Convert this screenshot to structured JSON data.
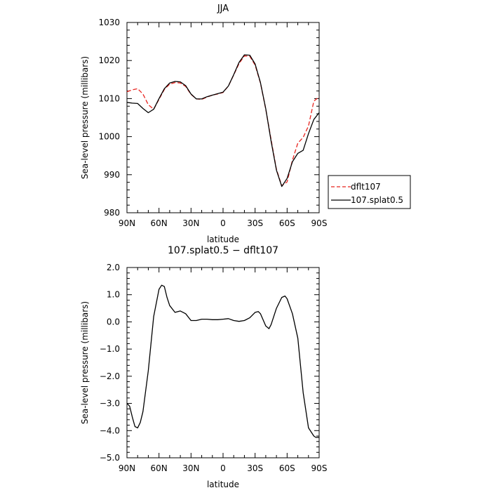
{
  "chart_data": [
    {
      "type": "line",
      "title": "JJA",
      "xlabel": "latitude",
      "ylabel": "Sea-level pressure (millibars)",
      "xlim": [
        90,
        -90
      ],
      "ylim": [
        980,
        1030
      ],
      "x_ticks": [
        90,
        60,
        30,
        0,
        -30,
        -60,
        -90
      ],
      "x_tick_labels": [
        "90N",
        "60N",
        "30N",
        "0",
        "30S",
        "60S",
        "90S"
      ],
      "y_ticks": [
        980,
        990,
        1000,
        1010,
        1020,
        1030
      ],
      "y_tick_labels": [
        "980",
        "990",
        "1000",
        "1010",
        "1020",
        "1030"
      ],
      "legend_position": "right",
      "series": [
        {
          "name": "dflt107",
          "color": "#e8241f",
          "dash": "dashed",
          "x": [
            90,
            85,
            80,
            75,
            70,
            65,
            60,
            55,
            50,
            45,
            40,
            35,
            30,
            25,
            20,
            15,
            10,
            5,
            0,
            -5,
            -10,
            -15,
            -20,
            -25,
            -30,
            -35,
            -40,
            -45,
            -50,
            -55,
            -60,
            -65,
            -70,
            -75,
            -80,
            -85,
            -90
          ],
          "values": [
            1011.8,
            1012.3,
            1012.6,
            1011.2,
            1008.4,
            1007.2,
            1009.8,
            1012.4,
            1013.8,
            1014.2,
            1014.1,
            1013.2,
            1011.1,
            1009.9,
            1009.8,
            1010.4,
            1010.9,
            1011.2,
            1011.6,
            1013.3,
            1016.2,
            1019.2,
            1021.2,
            1021.1,
            1018.8,
            1014.1,
            1007.2,
            999.2,
            991.4,
            987.1,
            988.1,
            993.8,
            998.3,
            999.8,
            1002.8,
            1009.3,
            1010.5
          ]
        },
        {
          "name": "107.splat0.5",
          "color": "#000000",
          "dash": "solid",
          "x": [
            90,
            85,
            80,
            75,
            70,
            65,
            60,
            55,
            50,
            45,
            40,
            35,
            30,
            25,
            20,
            15,
            10,
            5,
            0,
            -5,
            -10,
            -15,
            -20,
            -25,
            -30,
            -35,
            -40,
            -45,
            -50,
            -55,
            -60,
            -65,
            -70,
            -75,
            -80,
            -85,
            -90
          ],
          "values": [
            1009.0,
            1008.8,
            1008.7,
            1007.4,
            1006.3,
            1007.2,
            1010.0,
            1012.6,
            1014.1,
            1014.5,
            1014.4,
            1013.4,
            1011.2,
            1009.9,
            1009.9,
            1010.5,
            1010.9,
            1011.3,
            1011.7,
            1013.3,
            1016.3,
            1019.5,
            1021.5,
            1021.4,
            1019.1,
            1014.2,
            1007.3,
            998.8,
            991.2,
            986.9,
            989.0,
            993.4,
            995.6,
            996.4,
            1000.8,
            1004.5,
            1006.3
          ]
        }
      ]
    },
    {
      "type": "line",
      "title": "107.splat0.5 − dflt107",
      "xlabel": "latitude",
      "ylabel": "Sea-level pressure (millibars)",
      "xlim": [
        90,
        -90
      ],
      "ylim": [
        -5.0,
        2.0
      ],
      "x_ticks": [
        90,
        60,
        30,
        0,
        -30,
        -60,
        -90
      ],
      "x_tick_labels": [
        "90N",
        "60N",
        "30N",
        "0",
        "30S",
        "60S",
        "90S"
      ],
      "y_ticks": [
        -5.0,
        -4.0,
        -3.0,
        -2.0,
        -1.0,
        0.0,
        1.0,
        2.0
      ],
      "y_tick_labels": [
        "−5.0",
        "−4.0",
        "−3.0",
        "−2.0",
        "−1.0",
        "0.0",
        "1.0",
        "2.0"
      ],
      "series": [
        {
          "color": "#000000",
          "dash": "solid",
          "x": [
            90,
            87.5,
            85,
            82.5,
            80,
            77.5,
            75,
            70,
            65,
            60,
            57.5,
            55,
            52.5,
            50,
            45,
            40,
            35,
            30,
            25,
            20,
            15,
            10,
            5,
            0,
            -5,
            -10,
            -15,
            -20,
            -25,
            -30,
            -33,
            -35,
            -40,
            -43,
            -45,
            -50,
            -55,
            -58,
            -60,
            -65,
            -70,
            -75,
            -80,
            -85,
            -87,
            -90
          ],
          "values": [
            -3.0,
            -3.1,
            -3.5,
            -3.85,
            -3.9,
            -3.7,
            -3.3,
            -1.8,
            0.2,
            1.2,
            1.35,
            1.3,
            0.9,
            0.6,
            0.35,
            0.4,
            0.3,
            0.05,
            0.05,
            0.1,
            0.1,
            0.08,
            0.08,
            0.1,
            0.12,
            0.05,
            0.02,
            0.05,
            0.15,
            0.35,
            0.38,
            0.3,
            -0.15,
            -0.25,
            -0.1,
            0.5,
            0.9,
            0.95,
            0.85,
            0.3,
            -0.6,
            -2.6,
            -3.9,
            -4.2,
            -4.25,
            -4.25
          ]
        }
      ]
    }
  ]
}
